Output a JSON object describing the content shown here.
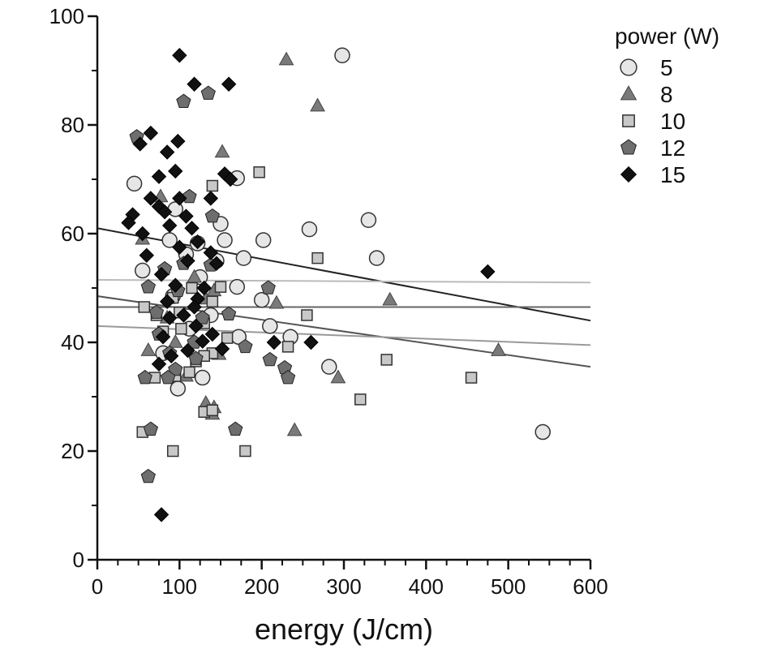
{
  "chart_data": {
    "type": "scatter",
    "xlabel": "energy (J/cm)",
    "ylabel": "",
    "xlim": [
      0,
      600
    ],
    "ylim": [
      0,
      100
    ],
    "x_ticks": [
      0,
      100,
      200,
      300,
      400,
      500,
      600
    ],
    "y_ticks": [
      0,
      20,
      40,
      60,
      80,
      100
    ],
    "grid": false,
    "legend": {
      "title": "power (W)",
      "position": "top-right"
    },
    "series": [
      {
        "name": "5",
        "marker": "circle",
        "fill": "#e6e6e6",
        "points": [
          [
            298,
            92.8
          ],
          [
            45,
            69.2
          ],
          [
            170,
            70.2
          ],
          [
            330,
            62.5
          ],
          [
            258,
            60.8
          ],
          [
            202,
            58.8
          ],
          [
            340,
            55.5
          ],
          [
            88,
            58.8
          ],
          [
            155,
            58.8
          ],
          [
            122,
            58.2
          ],
          [
            178,
            55.5
          ],
          [
            150,
            61.8
          ],
          [
            108,
            56.2
          ],
          [
            55,
            53.2
          ],
          [
            200,
            47.8
          ],
          [
            170,
            50.2
          ],
          [
            210,
            43.0
          ],
          [
            235,
            41.0
          ],
          [
            172,
            41.0
          ],
          [
            282,
            35.5
          ],
          [
            542,
            23.5
          ],
          [
            98,
            31.5
          ],
          [
            128,
            33.5
          ],
          [
            92,
            48.5
          ],
          [
            138,
            45.0
          ],
          [
            112,
            42.5
          ],
          [
            125,
            52.0
          ],
          [
            95,
            64.5
          ],
          [
            145,
            55.0
          ],
          [
            80,
            38.0
          ]
        ]
      },
      {
        "name": "8",
        "marker": "triangle",
        "fill": "#7a7a7a",
        "points": [
          [
            230,
            92.0
          ],
          [
            268,
            83.5
          ],
          [
            152,
            75.0
          ],
          [
            77,
            66.8
          ],
          [
            55,
            59.0
          ],
          [
            62,
            38.5
          ],
          [
            142,
            49.5
          ],
          [
            132,
            48.0
          ],
          [
            218,
            47.2
          ],
          [
            356,
            47.8
          ],
          [
            148,
            37.8
          ],
          [
            293,
            33.5
          ],
          [
            108,
            33.8
          ],
          [
            132,
            28.8
          ],
          [
            142,
            28.0
          ],
          [
            140,
            26.8
          ],
          [
            240,
            23.8
          ],
          [
            488,
            38.5
          ],
          [
            85,
            44.5
          ],
          [
            118,
            52.0
          ],
          [
            95,
            40.0
          ]
        ]
      },
      {
        "name": "10",
        "marker": "square",
        "fill": "#c8c8c8",
        "points": [
          [
            197,
            71.3
          ],
          [
            140,
            68.8
          ],
          [
            268,
            55.5
          ],
          [
            150,
            50.2
          ],
          [
            57,
            46.5
          ],
          [
            92,
            48.2
          ],
          [
            140,
            47.5
          ],
          [
            72,
            45.0
          ],
          [
            255,
            45.0
          ],
          [
            130,
            43.5
          ],
          [
            102,
            42.5
          ],
          [
            158,
            40.8
          ],
          [
            232,
            39.2
          ],
          [
            352,
            36.8
          ],
          [
            140,
            38.0
          ],
          [
            130,
            37.5
          ],
          [
            112,
            34.5
          ],
          [
            70,
            33.5
          ],
          [
            320,
            29.5
          ],
          [
            455,
            33.5
          ],
          [
            130,
            27.2
          ],
          [
            140,
            27.5
          ],
          [
            55,
            23.5
          ],
          [
            92,
            20.0
          ],
          [
            180,
            20.0
          ],
          [
            95,
            33.8
          ],
          [
            120,
            36.5
          ],
          [
            80,
            42.0
          ],
          [
            100,
            45.5
          ],
          [
            115,
            50.0
          ]
        ]
      },
      {
        "name": "12",
        "marker": "pentagon",
        "fill": "#6e6e6e",
        "points": [
          [
            105,
            84.3
          ],
          [
            135,
            85.8
          ],
          [
            48,
            77.8
          ],
          [
            140,
            63.2
          ],
          [
            112,
            66.8
          ],
          [
            138,
            54.2
          ],
          [
            62,
            50.2
          ],
          [
            208,
            50.0
          ],
          [
            98,
            49.5
          ],
          [
            72,
            45.5
          ],
          [
            160,
            45.2
          ],
          [
            210,
            36.8
          ],
          [
            228,
            35.3
          ],
          [
            232,
            33.5
          ],
          [
            58,
            33.5
          ],
          [
            65,
            24.0
          ],
          [
            168,
            24.0
          ],
          [
            62,
            15.3
          ],
          [
            180,
            39.2
          ],
          [
            118,
            40.0
          ],
          [
            88,
            38.0
          ],
          [
            95,
            35.0
          ],
          [
            75,
            41.5
          ],
          [
            128,
            44.5
          ],
          [
            82,
            53.5
          ],
          [
            105,
            54.5
          ],
          [
            86,
            33.5
          ],
          [
            120,
            37.0
          ]
        ]
      },
      {
        "name": "15",
        "marker": "diamond",
        "fill": "#111111",
        "points": [
          [
            100,
            92.8
          ],
          [
            118,
            87.5
          ],
          [
            160,
            87.5
          ],
          [
            65,
            78.5
          ],
          [
            52,
            76.5
          ],
          [
            98,
            77.0
          ],
          [
            85,
            75.0
          ],
          [
            95,
            71.5
          ],
          [
            75,
            70.5
          ],
          [
            155,
            71.0
          ],
          [
            162,
            70.0
          ],
          [
            65,
            66.5
          ],
          [
            100,
            66.5
          ],
          [
            138,
            66.5
          ],
          [
            75,
            65.0
          ],
          [
            82,
            64.0
          ],
          [
            43,
            63.5
          ],
          [
            38,
            62.0
          ],
          [
            108,
            63.2
          ],
          [
            115,
            61.0
          ],
          [
            88,
            61.5
          ],
          [
            55,
            60.0
          ],
          [
            122,
            58.5
          ],
          [
            138,
            56.5
          ],
          [
            60,
            56.0
          ],
          [
            110,
            55.0
          ],
          [
            145,
            54.5
          ],
          [
            100,
            57.5
          ],
          [
            95,
            50.5
          ],
          [
            130,
            50.0
          ],
          [
            78,
            52.5
          ],
          [
            85,
            47.5
          ],
          [
            122,
            48.0
          ],
          [
            475,
            53.0
          ],
          [
            105,
            45.0
          ],
          [
            88,
            44.5
          ],
          [
            120,
            43.0
          ],
          [
            215,
            40.0
          ],
          [
            260,
            40.0
          ],
          [
            128,
            40.2
          ],
          [
            152,
            38.8
          ],
          [
            80,
            41.0
          ],
          [
            90,
            37.5
          ],
          [
            75,
            36.0
          ],
          [
            78,
            8.3
          ],
          [
            110,
            38.5
          ],
          [
            118,
            46.5
          ],
          [
            140,
            41.5
          ]
        ]
      }
    ],
    "trend_lines": [
      {
        "x": [
          0,
          600
        ],
        "y": [
          61.0,
          44.0
        ],
        "color": "#222222"
      },
      {
        "x": [
          0,
          600
        ],
        "y": [
          51.5,
          51.0
        ],
        "color": "#bbbbbb"
      },
      {
        "x": [
          0,
          600
        ],
        "y": [
          48.5,
          35.5
        ],
        "color": "#555555"
      },
      {
        "x": [
          0,
          600
        ],
        "y": [
          46.5,
          46.5
        ],
        "color": "#666666"
      },
      {
        "x": [
          0,
          600
        ],
        "y": [
          43.0,
          39.5
        ],
        "color": "#999999"
      }
    ]
  }
}
